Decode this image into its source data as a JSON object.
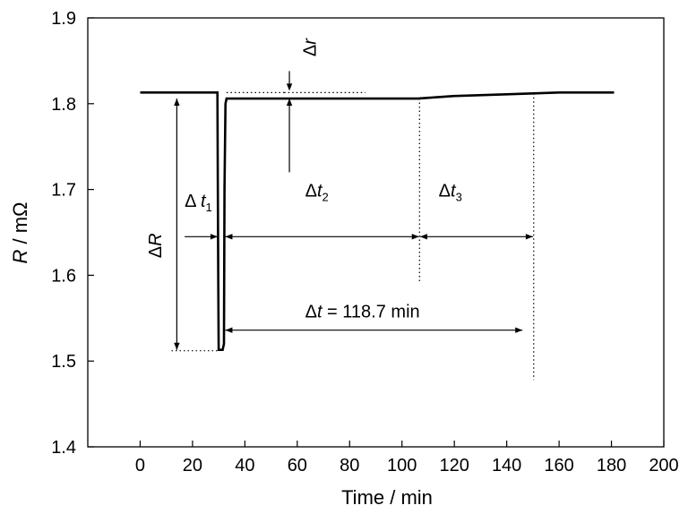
{
  "chart_data": {
    "type": "line",
    "xlabel": "Time / min",
    "ylabel_var": "R",
    "ylabel_unit": " / mΩ",
    "xlim": [
      -20,
      200
    ],
    "ylim": [
      1.4,
      1.9
    ],
    "xticks": [
      0,
      20,
      40,
      60,
      80,
      100,
      120,
      140,
      160,
      180,
      200
    ],
    "yticks": [
      1.4,
      1.5,
      1.6,
      1.7,
      1.8,
      1.9
    ],
    "xtick_labels": [
      "0",
      "20",
      "40",
      "60",
      "80",
      "100",
      "120",
      "140",
      "160",
      "180",
      "200"
    ],
    "ytick_labels": [
      "1.4",
      "1.5",
      "1.6",
      "1.7",
      "1.8",
      "1.9"
    ],
    "grid": false,
    "series": [
      {
        "x": [
          0,
          29.5,
          29.8,
          30.0,
          31.5,
          32.0,
          32.2,
          32.6,
          33.0,
          35,
          50,
          70,
          90,
          106,
          120,
          140,
          150,
          160,
          181
        ],
        "y": [
          1.813,
          1.813,
          1.6,
          1.513,
          1.513,
          1.52,
          1.7,
          1.8,
          1.806,
          1.806,
          1.806,
          1.806,
          1.806,
          1.806,
          1.809,
          1.811,
          1.812,
          1.813,
          1.813
        ]
      }
    ],
    "annotations": {
      "delta_R": "ΔR",
      "delta_r": "Δr",
      "delta_t1": "Δ t",
      "delta_t1_sub": "1",
      "delta_t2": "Δt",
      "delta_t2_sub": "2",
      "delta_t3": "Δt",
      "delta_t3_sub": "3",
      "delta_t_total": "Δt = 118.7 min"
    }
  }
}
